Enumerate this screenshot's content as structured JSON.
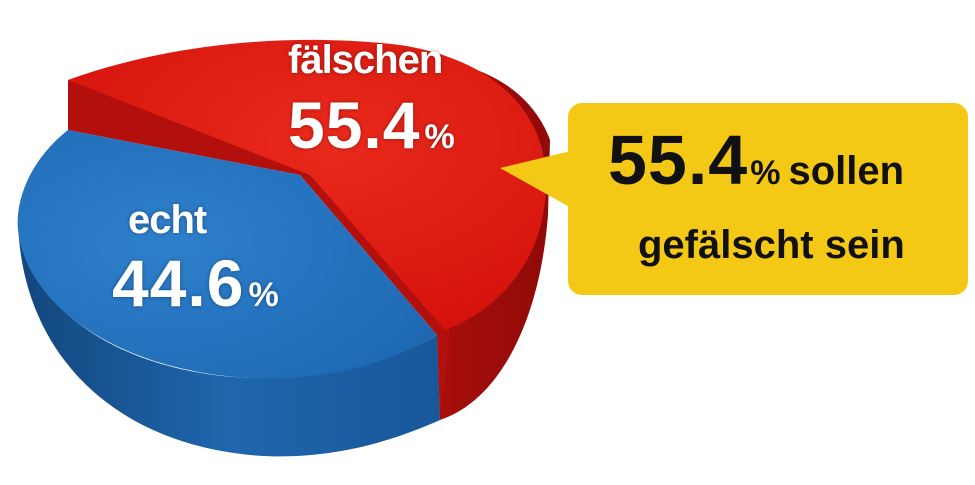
{
  "chart_data": {
    "type": "pie",
    "slices": [
      {
        "label": "fälschen",
        "value": 55.4,
        "unit": "%",
        "color": "#e0190f",
        "side_color": "#b5100d"
      },
      {
        "label": "echt",
        "value": 44.6,
        "unit": "%",
        "color": "#2575c0",
        "side_color": "#1a5a9c"
      }
    ],
    "annotation": {
      "value": "55.4",
      "unit": "%",
      "text_line1": "sollen",
      "text_line2": "gefälscht sein",
      "background_color": "#f4c916"
    }
  }
}
